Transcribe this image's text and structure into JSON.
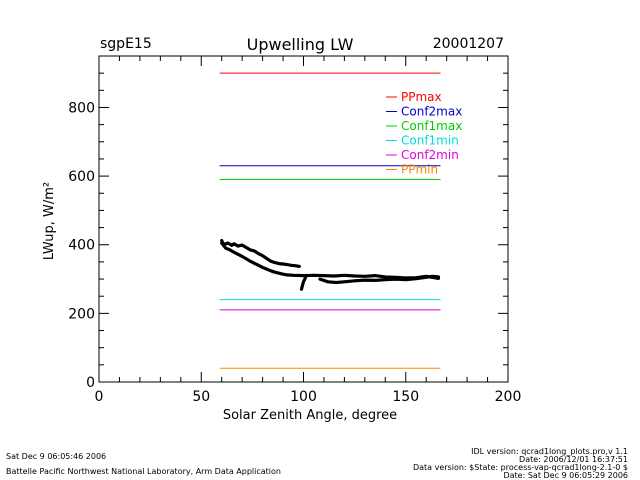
{
  "header": {
    "site": "sgpE15",
    "date": "20001207"
  },
  "footer": {
    "left_line1": "Sat Dec  9 06:05:46 2006",
    "left_line2": "Battelle Pacific Northwest National Laboratory, Arm Data Application",
    "right_line1": "IDL version: qcrad1long_plots.pro,v 1.1",
    "right_line2": "Date: 2006/12/01 16:37:51",
    "right_line3": "Data version: $State: process-vap-qcrad1long-2.1-0 $",
    "right_line4": "Date: Sat Dec  9 06:05:29 2006"
  },
  "chart_data": {
    "type": "line",
    "title": "Upwelling LW",
    "xlabel": "Solar Zenith Angle, degree",
    "ylabel": "LWup, W/m²",
    "xlim": [
      0,
      200
    ],
    "ylim": [
      0,
      950
    ],
    "x_ticks": [
      0,
      50,
      100,
      150,
      200
    ],
    "y_ticks": [
      0,
      200,
      400,
      600,
      800
    ],
    "x_tick_labels": [
      "0",
      "50",
      "100",
      "150",
      "200"
    ],
    "y_tick_labels": [
      "0",
      "200",
      "400",
      "600",
      "800"
    ],
    "grid": false,
    "legend_position": "top-right",
    "limits": [
      {
        "name": "PPmax",
        "y": 900,
        "x_range": [
          59,
          167
        ],
        "color": "#ff0000"
      },
      {
        "name": "Conf2max",
        "y": 630,
        "x_range": [
          59,
          167
        ],
        "color": "#0000cc"
      },
      {
        "name": "Conf1max",
        "y": 590,
        "x_range": [
          59,
          167
        ],
        "color": "#00cc00"
      },
      {
        "name": "Conf1min",
        "y": 240,
        "x_range": [
          59,
          167
        ],
        "color": "#00dddd"
      },
      {
        "name": "Conf2min",
        "y": 210,
        "x_range": [
          59,
          167
        ],
        "color": "#dd00dd"
      },
      {
        "name": "PPmin",
        "y": 40,
        "x_range": [
          59,
          167
        ],
        "color": "#ff8800"
      }
    ],
    "series": [
      {
        "color": "#000000",
        "points": [
          [
            60,
            412
          ],
          [
            61,
            400
          ],
          [
            63,
            405
          ],
          [
            65,
            398
          ],
          [
            66,
            403
          ],
          [
            68,
            396
          ],
          [
            70,
            399
          ],
          [
            72,
            392
          ],
          [
            74,
            385
          ],
          [
            76,
            382
          ],
          [
            78,
            374
          ],
          [
            80,
            368
          ],
          [
            82,
            360
          ],
          [
            84,
            352
          ],
          [
            86,
            348
          ],
          [
            88,
            345
          ],
          [
            90,
            344
          ],
          [
            92,
            342
          ],
          [
            94,
            340
          ],
          [
            96,
            339
          ],
          [
            98,
            337
          ]
        ]
      },
      {
        "color": "#000000",
        "points": [
          [
            60,
            405
          ],
          [
            62,
            390
          ],
          [
            64,
            385
          ],
          [
            66,
            378
          ],
          [
            68,
            372
          ],
          [
            70,
            366
          ],
          [
            72,
            359
          ],
          [
            74,
            352
          ],
          [
            76,
            346
          ],
          [
            78,
            340
          ],
          [
            80,
            334
          ],
          [
            82,
            329
          ],
          [
            84,
            324
          ],
          [
            86,
            320
          ],
          [
            88,
            317
          ],
          [
            90,
            314
          ],
          [
            92,
            312
          ],
          [
            95,
            311
          ],
          [
            100,
            310
          ],
          [
            105,
            311
          ],
          [
            110,
            310
          ],
          [
            115,
            309
          ],
          [
            120,
            311
          ],
          [
            125,
            309
          ],
          [
            130,
            308
          ],
          [
            135,
            310
          ],
          [
            140,
            306
          ],
          [
            145,
            305
          ],
          [
            150,
            303
          ],
          [
            155,
            304
          ],
          [
            160,
            308
          ],
          [
            163,
            305
          ],
          [
            166,
            302
          ]
        ]
      },
      {
        "color": "#000000",
        "points": [
          [
            108,
            300
          ],
          [
            112,
            292
          ],
          [
            116,
            290
          ],
          [
            120,
            292
          ],
          [
            125,
            295
          ],
          [
            130,
            297
          ],
          [
            135,
            296
          ],
          [
            140,
            298
          ],
          [
            145,
            300
          ],
          [
            150,
            298
          ],
          [
            155,
            301
          ],
          [
            160,
            305
          ],
          [
            163,
            308
          ],
          [
            166,
            306
          ]
        ]
      },
      {
        "color": "#000000",
        "points": [
          [
            99,
            270
          ],
          [
            99.5,
            282
          ],
          [
            100,
            292
          ],
          [
            100.5,
            298
          ],
          [
            101,
            304
          ]
        ]
      }
    ]
  }
}
